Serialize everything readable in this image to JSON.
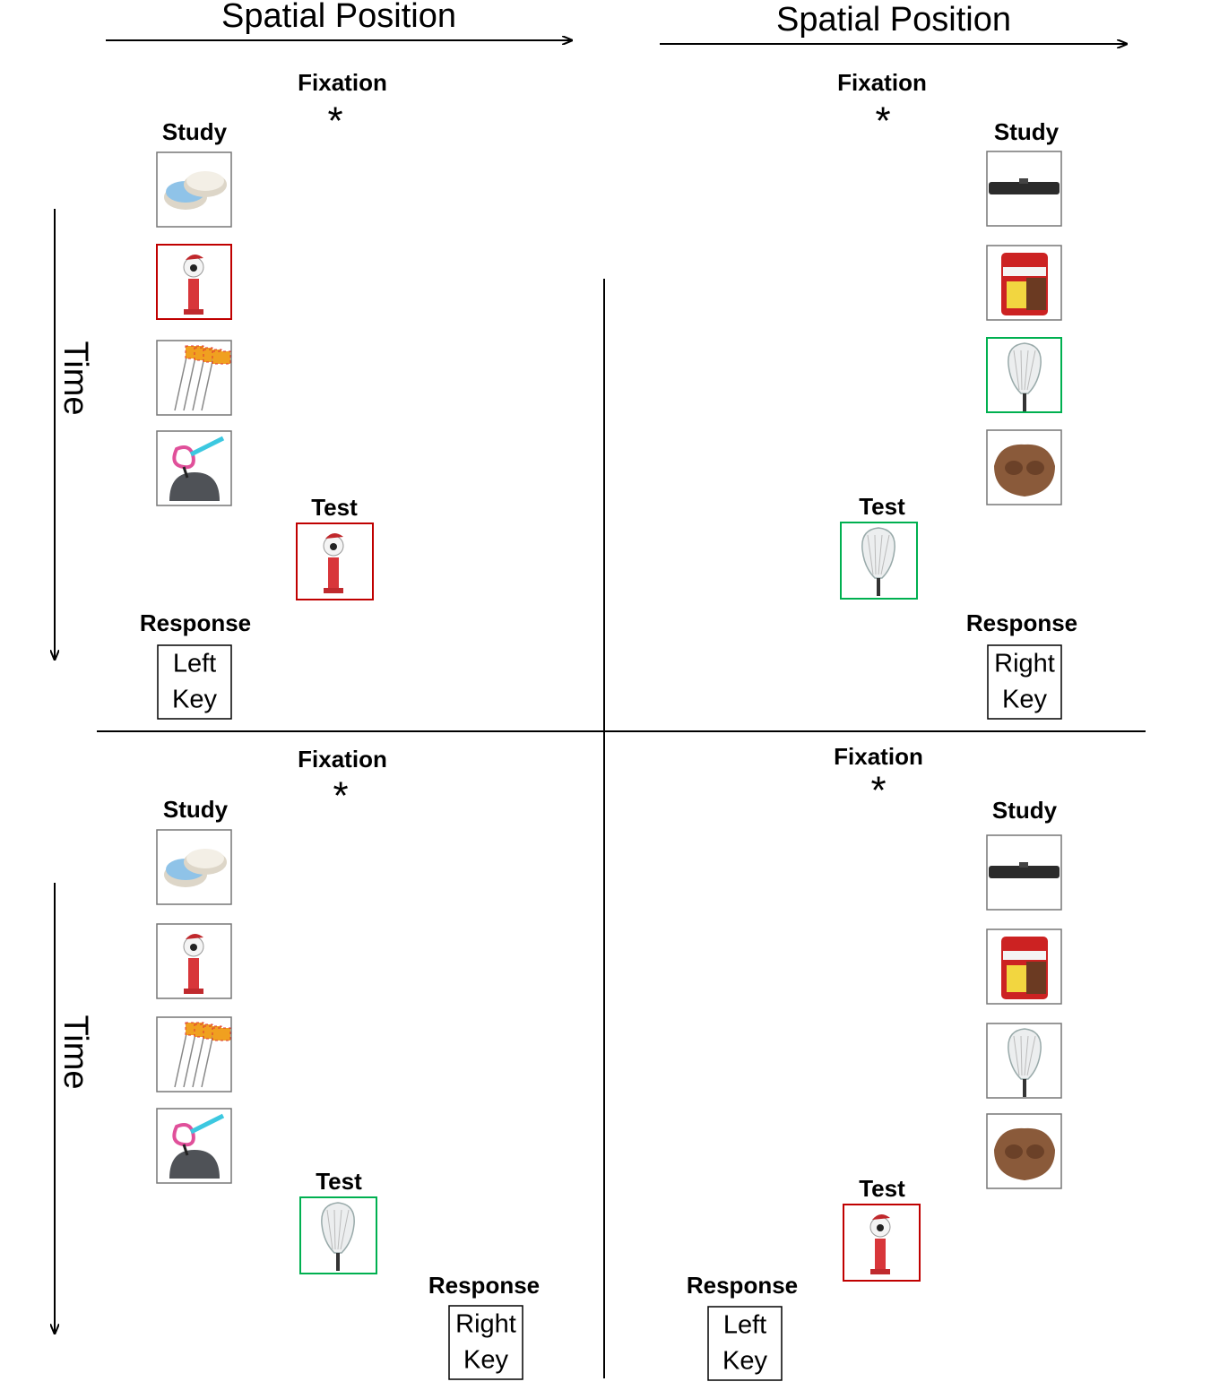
{
  "axes": {
    "spatial": [
      "Spatial Position",
      "Spatial Position"
    ],
    "time": [
      "Time",
      "Time"
    ]
  },
  "panels": [
    {
      "fixation_label": "Fixation",
      "fixation_mark": "*",
      "study_label": "Study",
      "test_label": "Test",
      "response_label": "Response",
      "response_key": [
        "Left",
        "Key"
      ]
    },
    {
      "fixation_label": "Fixation",
      "fixation_mark": "*",
      "study_label": "Study",
      "test_label": "Test",
      "response_label": "Response",
      "response_key": [
        "Right",
        "Key"
      ]
    },
    {
      "fixation_label": "Fixation",
      "fixation_mark": "*",
      "study_label": "Study",
      "test_label": "Test",
      "response_label": "Response",
      "response_key": [
        "Right",
        "Key"
      ]
    },
    {
      "fixation_label": "Fixation",
      "fixation_mark": "*",
      "study_label": "Study",
      "test_label": "Test",
      "response_label": "Response",
      "response_key": [
        "Left",
        "Key"
      ]
    }
  ]
}
